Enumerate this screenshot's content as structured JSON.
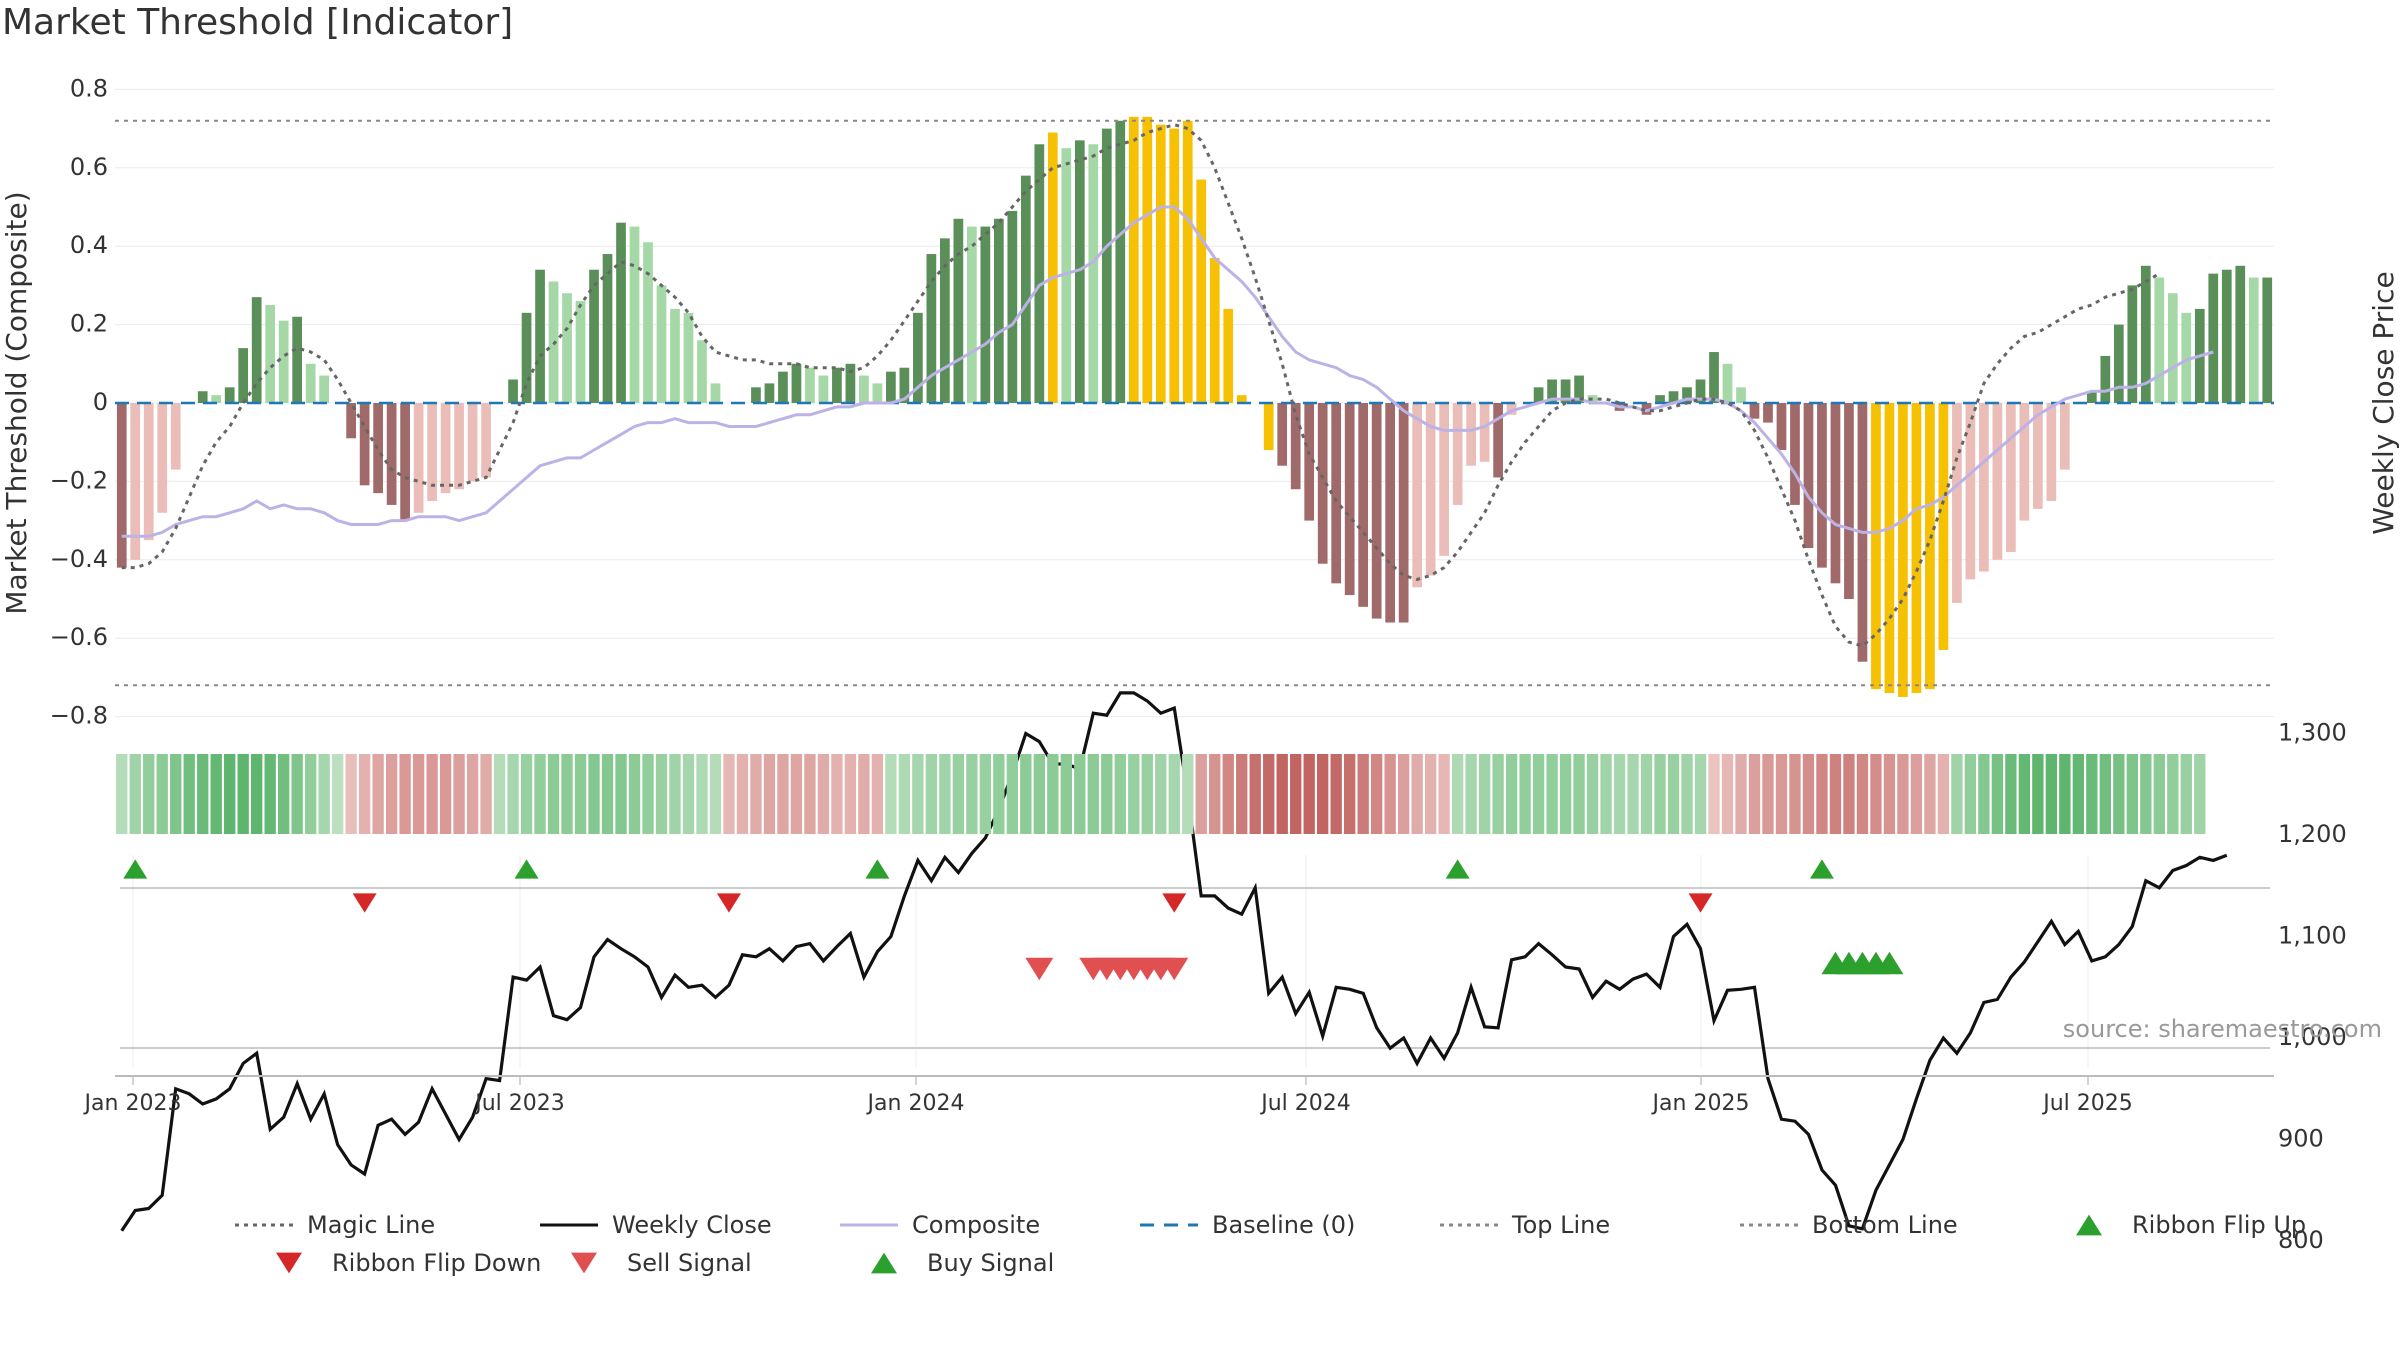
{
  "title": "Market Threshold [Indicator]",
  "source": "source: sharemaestro.com",
  "colors": {
    "strong_green": "#5a8f5a",
    "light_green": "#a6d7a6",
    "strong_red": "#a06a6a",
    "light_red": "#ebbdb8",
    "yellow": "#f6c103",
    "weekly_close": "#111111",
    "composite": "#bdb2e6",
    "magic_line": "#666666",
    "baseline": "#1f77b4",
    "ref_lines": "#888888",
    "buy": "#2ca02c",
    "sell": "#d62728"
  },
  "chart_data": {
    "type": "bar",
    "title": "Market Threshold [Indicator]",
    "ylabel": "Market Threshold (Composite)",
    "y2label": "Weekly Close Price",
    "ylim": [
      -0.8,
      0.8
    ],
    "y2lim": [
      765,
      1350
    ],
    "yticks": [
      "0.8",
      "0.6",
      "0.4",
      "0.2",
      "0",
      "−0.2",
      "−0.4",
      "−0.6",
      "−0.8"
    ],
    "y2ticks": [
      "1,300",
      "1,200",
      "1,100",
      "1,000",
      "900",
      "800"
    ],
    "xticks": [
      "Jan 2023",
      "Jul 2023",
      "Jan 2024",
      "Jul 2024",
      "Jan 2025",
      "Jul 2025"
    ],
    "top_line": 0.72,
    "bottom_line": -0.72,
    "grid": true,
    "legend": [
      {
        "label": "Magic Line",
        "kind": "dotted",
        "color": "#666666"
      },
      {
        "label": "Weekly Close",
        "kind": "solid",
        "color": "#111111"
      },
      {
        "label": "Composite",
        "kind": "solid",
        "color": "#bdb2e6"
      },
      {
        "label": "Baseline (0)",
        "kind": "dashed",
        "color": "#1f77b4"
      },
      {
        "label": "Top Line",
        "kind": "dotted",
        "color": "#888888"
      },
      {
        "label": "Bottom Line",
        "kind": "dotted",
        "color": "#888888"
      },
      {
        "label": "Ribbon Flip Up",
        "kind": "tri-up",
        "color": "#2ca02c"
      },
      {
        "label": "Ribbon Flip Down",
        "kind": "tri-down",
        "color": "#d62728"
      },
      {
        "label": "Sell Signal",
        "kind": "tri-down",
        "color": "#e05050"
      },
      {
        "label": "Buy Signal",
        "kind": "tri-up",
        "color": "#2ca02c"
      }
    ],
    "legend_position": "bottom",
    "series": [
      {
        "name": "Market Threshold",
        "kind": "bars",
        "values": [
          -0.42,
          -0.4,
          -0.35,
          -0.28,
          -0.17,
          0,
          0.03,
          0.02,
          0.04,
          0.14,
          0.27,
          0.25,
          0.21,
          0.22,
          0.1,
          0.07,
          0,
          -0.09,
          -0.21,
          -0.23,
          -0.26,
          -0.3,
          -0.28,
          -0.25,
          -0.23,
          -0.22,
          -0.2,
          -0.19,
          0,
          0.06,
          0.23,
          0.34,
          0.31,
          0.28,
          0.26,
          0.34,
          0.38,
          0.46,
          0.45,
          0.41,
          0.3,
          0.24,
          0.23,
          0.16,
          0.05,
          0,
          0,
          0.04,
          0.05,
          0.08,
          0.1,
          0.09,
          0.07,
          0.09,
          0.1,
          0.07,
          0.05,
          0.08,
          0.09,
          0.23,
          0.38,
          0.42,
          0.47,
          0.45,
          0.45,
          0.47,
          0.49,
          0.58,
          0.66,
          0.69,
          0.65,
          0.67,
          0.66,
          0.7,
          0.72,
          0.73,
          0.73,
          0.71,
          0.7,
          0.72,
          0.57,
          0.37,
          0.24,
          0.02,
          0,
          -0.12,
          -0.16,
          -0.22,
          -0.3,
          -0.41,
          -0.46,
          -0.49,
          -0.52,
          -0.55,
          -0.56,
          -0.56,
          -0.47,
          -0.44,
          -0.39,
          -0.26,
          -0.16,
          -0.15,
          -0.19,
          -0.03,
          0,
          0.04,
          0.06,
          0.06,
          0.07,
          0.02,
          0,
          -0.02,
          0,
          -0.03,
          0.02,
          0.03,
          0.04,
          0.06,
          0.13,
          0.1,
          0.04,
          -0.04,
          -0.05,
          -0.12,
          -0.26,
          -0.37,
          -0.42,
          -0.46,
          -0.5,
          -0.66,
          -0.73,
          -0.74,
          -0.75,
          -0.74,
          -0.73,
          -0.63,
          -0.51,
          -0.45,
          -0.43,
          -0.4,
          -0.38,
          -0.3,
          -0.27,
          -0.25,
          -0.17,
          0,
          0.03,
          0.12,
          0.2,
          0.3,
          0.35,
          0.32,
          0.28,
          0.23,
          0.24,
          0.33,
          0.34,
          0.35,
          0.32,
          0.32
        ]
      },
      {
        "name": "Weekly Close",
        "kind": "line",
        "axis": "right",
        "values": [
          810,
          830,
          832,
          845,
          950,
          945,
          935,
          940,
          950,
          975,
          985,
          910,
          922,
          955,
          920,
          945,
          895,
          875,
          866,
          914,
          920,
          905,
          917,
          950,
          925,
          900,
          922,
          960,
          958,
          1060,
          1057,
          1070,
          1022,
          1018,
          1030,
          1080,
          1097,
          1088,
          1080,
          1070,
          1040,
          1062,
          1050,
          1052,
          1040,
          1052,
          1082,
          1080,
          1088,
          1076,
          1090,
          1093,
          1076,
          1090,
          1103,
          1060,
          1085,
          1100,
          1140,
          1175,
          1155,
          1178,
          1163,
          1182,
          1197,
          1225,
          1260,
          1300,
          1292,
          1270,
          1270,
          1265,
          1320,
          1318,
          1340,
          1340,
          1332,
          1320,
          1325,
          1240,
          1140,
          1140,
          1128,
          1122,
          1148,
          1044,
          1060,
          1024,
          1045,
          1002,
          1050,
          1048,
          1044,
          1010,
          990,
          1000,
          975,
          1000,
          980,
          1005,
          1050,
          1011,
          1010,
          1077,
          1080,
          1093,
          1082,
          1070,
          1068,
          1040,
          1056,
          1048,
          1058,
          1063,
          1050,
          1100,
          1112,
          1088,
          1017,
          1047,
          1048,
          1050,
          960,
          920,
          918,
          905,
          870,
          855,
          815,
          812,
          850,
          875,
          900,
          940,
          978,
          1000,
          985,
          1005,
          1035,
          1038,
          1060,
          1075,
          1095,
          1115,
          1092,
          1105,
          1076,
          1080,
          1092,
          1110,
          1155,
          1148,
          1165,
          1170,
          1178,
          1175,
          1180
        ]
      },
      {
        "name": "Composite",
        "kind": "line",
        "values": [
          -0.34,
          -0.34,
          -0.34,
          -0.33,
          -0.31,
          -0.3,
          -0.29,
          -0.29,
          -0.28,
          -0.27,
          -0.25,
          -0.27,
          -0.26,
          -0.27,
          -0.27,
          -0.28,
          -0.3,
          -0.31,
          -0.31,
          -0.31,
          -0.3,
          -0.3,
          -0.29,
          -0.29,
          -0.29,
          -0.3,
          -0.29,
          -0.28,
          -0.25,
          -0.22,
          -0.19,
          -0.16,
          -0.15,
          -0.14,
          -0.14,
          -0.12,
          -0.1,
          -0.08,
          -0.06,
          -0.05,
          -0.05,
          -0.04,
          -0.05,
          -0.05,
          -0.05,
          -0.06,
          -0.06,
          -0.06,
          -0.05,
          -0.04,
          -0.03,
          -0.03,
          -0.02,
          -0.01,
          -0.01,
          0,
          0,
          0,
          0.01,
          0.04,
          0.07,
          0.09,
          0.11,
          0.13,
          0.15,
          0.18,
          0.2,
          0.25,
          0.3,
          0.32,
          0.33,
          0.34,
          0.36,
          0.4,
          0.43,
          0.46,
          0.48,
          0.5,
          0.5,
          0.47,
          0.42,
          0.37,
          0.34,
          0.31,
          0.27,
          0.22,
          0.17,
          0.13,
          0.11,
          0.1,
          0.09,
          0.07,
          0.06,
          0.04,
          0.01,
          -0.02,
          -0.04,
          -0.06,
          -0.07,
          -0.07,
          -0.07,
          -0.06,
          -0.04,
          -0.02,
          -0.01,
          0,
          0.01,
          0.01,
          0.01,
          0,
          0,
          -0.01,
          -0.01,
          -0.02,
          -0.01,
          0,
          0.01,
          0.01,
          0.01,
          0,
          -0.02,
          -0.05,
          -0.09,
          -0.13,
          -0.18,
          -0.24,
          -0.28,
          -0.31,
          -0.32,
          -0.33,
          -0.33,
          -0.32,
          -0.3,
          -0.27,
          -0.26,
          -0.24,
          -0.21,
          -0.18,
          -0.15,
          -0.12,
          -0.09,
          -0.06,
          -0.03,
          -0.01,
          0.01,
          0.02,
          0.03,
          0.03,
          0.04,
          0.04,
          0.05,
          0.07,
          0.09,
          0.11,
          0.12,
          0.13
        ]
      },
      {
        "name": "Magic Line",
        "kind": "line",
        "values": [
          -0.42,
          -0.42,
          -0.41,
          -0.38,
          -0.32,
          -0.24,
          -0.16,
          -0.1,
          -0.06,
          0,
          0.05,
          0.09,
          0.12,
          0.14,
          0.13,
          0.11,
          0.06,
          0,
          -0.06,
          -0.12,
          -0.17,
          -0.19,
          -0.2,
          -0.21,
          -0.21,
          -0.21,
          -0.2,
          -0.19,
          -0.12,
          -0.05,
          0.05,
          0.12,
          0.15,
          0.19,
          0.25,
          0.3,
          0.33,
          0.36,
          0.35,
          0.33,
          0.3,
          0.27,
          0.23,
          0.17,
          0.13,
          0.12,
          0.11,
          0.11,
          0.1,
          0.1,
          0.1,
          0.09,
          0.09,
          0.09,
          0.08,
          0.09,
          0.12,
          0.16,
          0.21,
          0.26,
          0.31,
          0.35,
          0.38,
          0.4,
          0.43,
          0.46,
          0.5,
          0.54,
          0.57,
          0.6,
          0.61,
          0.62,
          0.63,
          0.65,
          0.66,
          0.67,
          0.69,
          0.7,
          0.71,
          0.7,
          0.67,
          0.6,
          0.51,
          0.42,
          0.32,
          0.21,
          0.1,
          -0.03,
          -0.13,
          -0.19,
          -0.25,
          -0.29,
          -0.33,
          -0.37,
          -0.41,
          -0.44,
          -0.45,
          -0.44,
          -0.42,
          -0.38,
          -0.33,
          -0.28,
          -0.21,
          -0.15,
          -0.1,
          -0.06,
          -0.02,
          0,
          0.01,
          0.01,
          0.01,
          0,
          -0.01,
          -0.02,
          -0.02,
          -0.01,
          0,
          0.01,
          0.01,
          0,
          -0.02,
          -0.07,
          -0.14,
          -0.22,
          -0.3,
          -0.4,
          -0.49,
          -0.57,
          -0.61,
          -0.62,
          -0.59,
          -0.55,
          -0.5,
          -0.43,
          -0.35,
          -0.25,
          -0.14,
          -0.05,
          0.05,
          0.1,
          0.14,
          0.17,
          0.18,
          0.2,
          0.22,
          0.24,
          0.25,
          0.27,
          0.28,
          0.29,
          0.31,
          0.33
        ]
      }
    ],
    "yellow_bar_indices": [
      69,
      75,
      76,
      77,
      78,
      79,
      80,
      81,
      82,
      83,
      84,
      85,
      130,
      131,
      132,
      133,
      134,
      135
    ],
    "ribbon": [
      0.3,
      0.45,
      0.55,
      0.6,
      0.7,
      0.8,
      0.85,
      0.9,
      0.95,
      0.95,
      0.95,
      0.9,
      0.8,
      0.7,
      0.55,
      0.4,
      0.25,
      -0.2,
      -0.3,
      -0.4,
      -0.45,
      -0.5,
      -0.5,
      -0.5,
      -0.5,
      -0.45,
      -0.4,
      -0.35,
      0.3,
      0.4,
      0.5,
      0.55,
      0.6,
      0.6,
      0.6,
      0.65,
      0.65,
      0.65,
      0.6,
      0.55,
      0.5,
      0.45,
      0.4,
      0.35,
      0.3,
      -0.25,
      -0.3,
      -0.35,
      -0.4,
      -0.4,
      -0.4,
      -0.4,
      -0.35,
      -0.3,
      -0.3,
      -0.35,
      -0.3,
      0.3,
      0.35,
      0.4,
      0.45,
      0.45,
      0.5,
      0.5,
      0.5,
      0.55,
      0.55,
      0.6,
      0.6,
      0.6,
      0.6,
      0.6,
      0.6,
      0.6,
      0.55,
      0.5,
      0.5,
      0.45,
      0.4,
      0.3,
      -0.45,
      -0.55,
      -0.65,
      -0.75,
      -0.85,
      -0.9,
      -0.95,
      -0.95,
      -0.95,
      -0.95,
      -0.9,
      -0.85,
      -0.75,
      -0.65,
      -0.55,
      -0.45,
      -0.35,
      -0.3,
      -0.25,
      0.35,
      0.4,
      0.45,
      0.5,
      0.55,
      0.55,
      0.55,
      0.55,
      0.55,
      0.55,
      0.5,
      0.45,
      0.4,
      0.4,
      0.45,
      0.5,
      0.5,
      0.45,
      0.4,
      -0.15,
      -0.25,
      -0.35,
      -0.45,
      -0.5,
      -0.5,
      -0.55,
      -0.6,
      -0.65,
      -0.7,
      -0.7,
      -0.65,
      -0.6,
      -0.55,
      -0.5,
      -0.45,
      -0.4,
      -0.3,
      0.45,
      0.55,
      0.65,
      0.75,
      0.85,
      0.9,
      0.95,
      0.95,
      0.95,
      0.9,
      0.85,
      0.8,
      0.75,
      0.7,
      0.65,
      0.6,
      0.55,
      0.5,
      0.45
    ],
    "ribbon_flip_up_weeks": [
      1,
      30,
      56,
      99,
      126
    ],
    "ribbon_flip_down_weeks": [
      18,
      45,
      78,
      117
    ],
    "sell_signal_weeks": [
      68,
      72,
      73,
      74,
      75,
      76,
      77,
      78
    ],
    "buy_signal_weeks": [
      127,
      128,
      129,
      130,
      131
    ]
  }
}
